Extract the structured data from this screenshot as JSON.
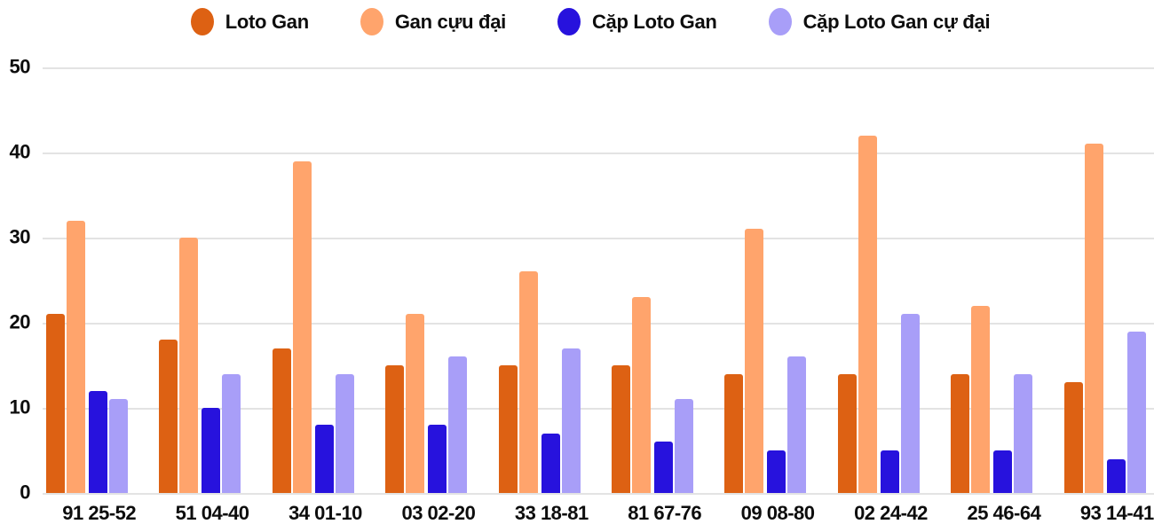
{
  "colors": {
    "background": "#ffffff",
    "gridline": "#e3e3e3",
    "axis_text": "#0d0d0d"
  },
  "chart_data": {
    "type": "bar",
    "title": "",
    "xlabel": "",
    "ylabel": "",
    "categories": [
      "91 25-52",
      "51 04-40",
      "34 01-10",
      "03 02-20",
      "33 18-81",
      "81 67-76",
      "09 08-80",
      "02 24-42",
      "25 46-64",
      "93 14-41"
    ],
    "series": [
      {
        "name": "Loto Gan",
        "color": "#dd6113",
        "values": [
          21,
          18,
          17,
          15,
          15,
          15,
          14,
          14,
          14,
          13
        ]
      },
      {
        "name": "Gan cựu đại",
        "color": "#ffa46c",
        "values": [
          32,
          30,
          39,
          21,
          26,
          23,
          31,
          42,
          22,
          41
        ]
      },
      {
        "name": "Cặp Loto Gan",
        "color": "#2712dd",
        "values": [
          12,
          10,
          8,
          8,
          7,
          6,
          5,
          5,
          5,
          4
        ]
      },
      {
        "name": "Cặp Loto Gan cự đại",
        "color": "#a89ef8",
        "values": [
          11,
          14,
          14,
          16,
          17,
          11,
          16,
          21,
          14,
          19
        ]
      }
    ],
    "ylim": [
      0,
      50
    ],
    "yticks": [
      0,
      10,
      20,
      30,
      40,
      50
    ],
    "grid": true,
    "legend_position": "top"
  }
}
